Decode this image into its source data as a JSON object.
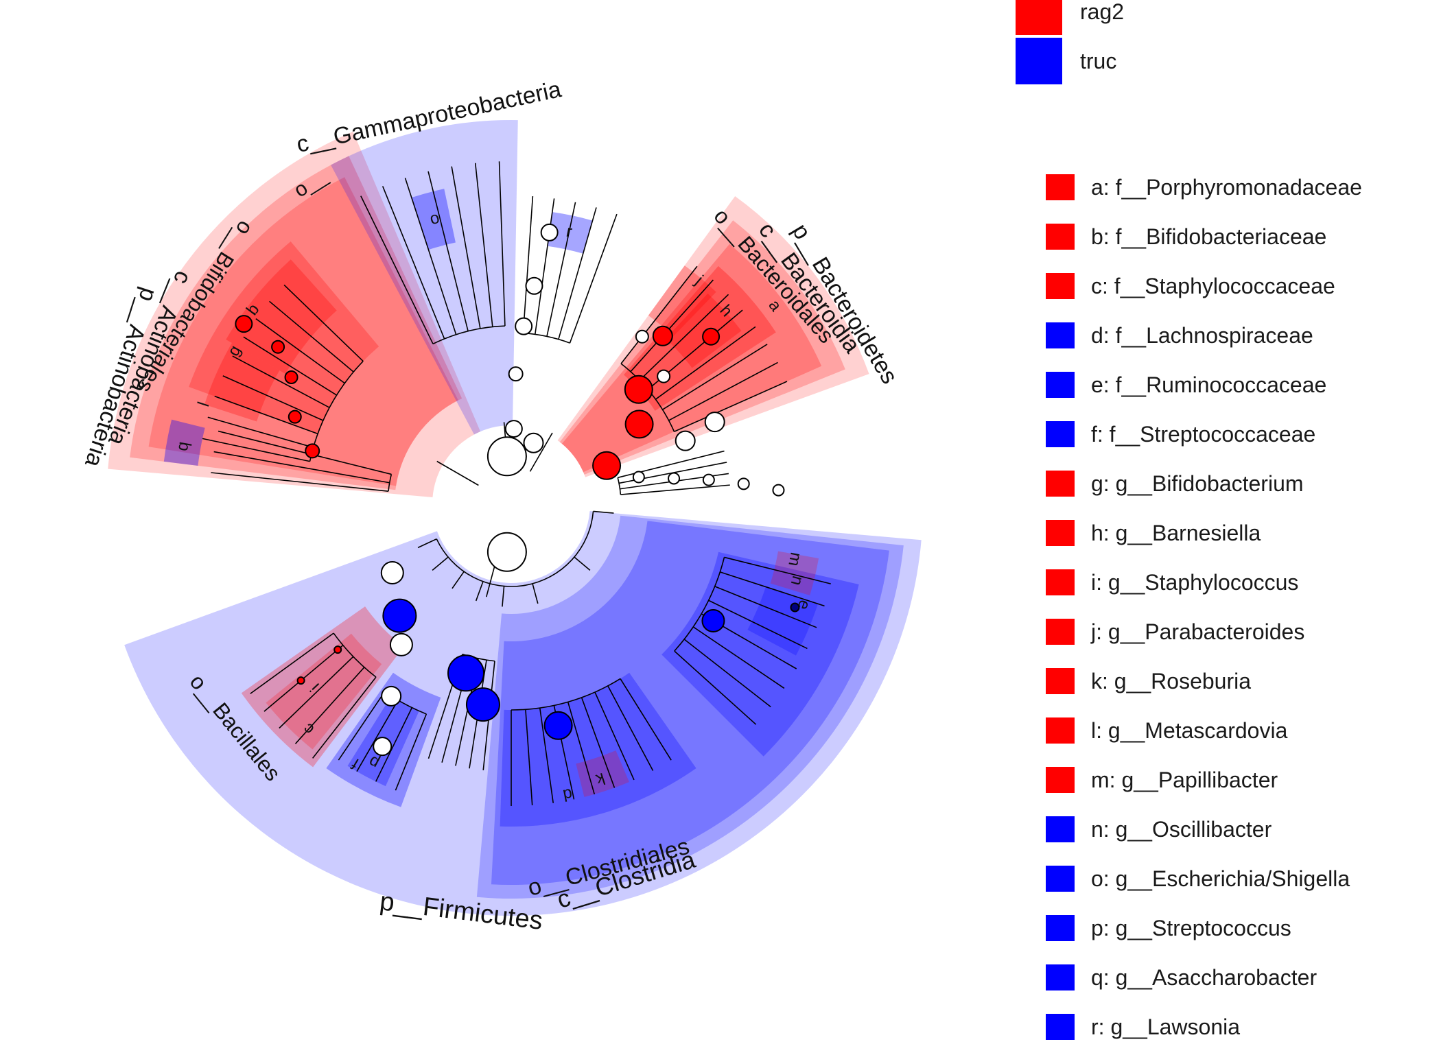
{
  "colors": {
    "rag2": "#ff0000",
    "truc": "#0000ff",
    "rag2_light": "#ffcccc",
    "truc_light": "#ccccff",
    "node_neutral": "#ffffff"
  },
  "groups": [
    {
      "name": "rag2",
      "color": "#ff0000"
    },
    {
      "name": "truc",
      "color": "#0000ff"
    }
  ],
  "taxa_legend": [
    {
      "letter": "a",
      "text": "a: f__Porphyromonadaceae",
      "color": "#ff0000"
    },
    {
      "letter": "b",
      "text": "b: f__Bifidobacteriaceae",
      "color": "#ff0000"
    },
    {
      "letter": "c",
      "text": "c: f__Staphylococcaceae",
      "color": "#ff0000"
    },
    {
      "letter": "d",
      "text": "d: f__Lachnospiraceae",
      "color": "#0000ff"
    },
    {
      "letter": "e",
      "text": "e: f__Ruminococcaceae",
      "color": "#0000ff"
    },
    {
      "letter": "f",
      "text": "f: f__Streptococcaceae",
      "color": "#0000ff"
    },
    {
      "letter": "g",
      "text": "g: g__Bifidobacterium",
      "color": "#ff0000"
    },
    {
      "letter": "h",
      "text": "h: g__Barnesiella",
      "color": "#ff0000"
    },
    {
      "letter": "i",
      "text": "i: g__Staphylococcus",
      "color": "#ff0000"
    },
    {
      "letter": "j",
      "text": "j: g__Parabacteroides",
      "color": "#ff0000"
    },
    {
      "letter": "k",
      "text": "k: g__Roseburia",
      "color": "#ff0000"
    },
    {
      "letter": "l",
      "text": "l: g__Metascardovia",
      "color": "#ff0000"
    },
    {
      "letter": "m",
      "text": "m: g__Papillibacter",
      "color": "#ff0000"
    },
    {
      "letter": "n",
      "text": "n: g__Oscillibacter",
      "color": "#0000ff"
    },
    {
      "letter": "o",
      "text": "o: g__Escherichia/Shigella",
      "color": "#0000ff"
    },
    {
      "letter": "p",
      "text": "p: g__Streptococcus",
      "color": "#0000ff"
    },
    {
      "letter": "q",
      "text": "q: g__Asaccharobacter",
      "color": "#0000ff"
    },
    {
      "letter": "r",
      "text": "r: g__Lawsonia",
      "color": "#0000ff"
    }
  ],
  "clades": [
    {
      "id": "bacteroidetes",
      "group": "rag2",
      "phylum": "p__Bacteroidetes",
      "class": "c__Bacteroidia",
      "order": "o__Bacteroidales",
      "span": [
        -54,
        -20
      ]
    },
    {
      "id": "actinobacteria",
      "group": "rag2",
      "phylum": "p__Actinobacteria",
      "class": "c__Actinobacteria",
      "order": "o__Bifidobacteriales",
      "span": [
        -175,
        -113
      ]
    },
    {
      "id": "gammaproteobacteria",
      "group": "truc",
      "class": "c__Gammaproteobacteria",
      "order": "o__",
      "span": [
        -118,
        -89
      ]
    },
    {
      "id": "firmicutes",
      "group": "truc",
      "phylum": "p__Firmicutes",
      "class": "c__Clostridia",
      "order": "o__Clostridiales",
      "order2": "o__Bacillales",
      "span": [
        5,
        160
      ]
    }
  ],
  "marker_letters": [
    "a",
    "h",
    "j",
    "g",
    "b",
    "l",
    "q",
    "o",
    "r",
    "i",
    "c",
    "f",
    "p",
    "d",
    "k",
    "e",
    "n",
    "m"
  ]
}
